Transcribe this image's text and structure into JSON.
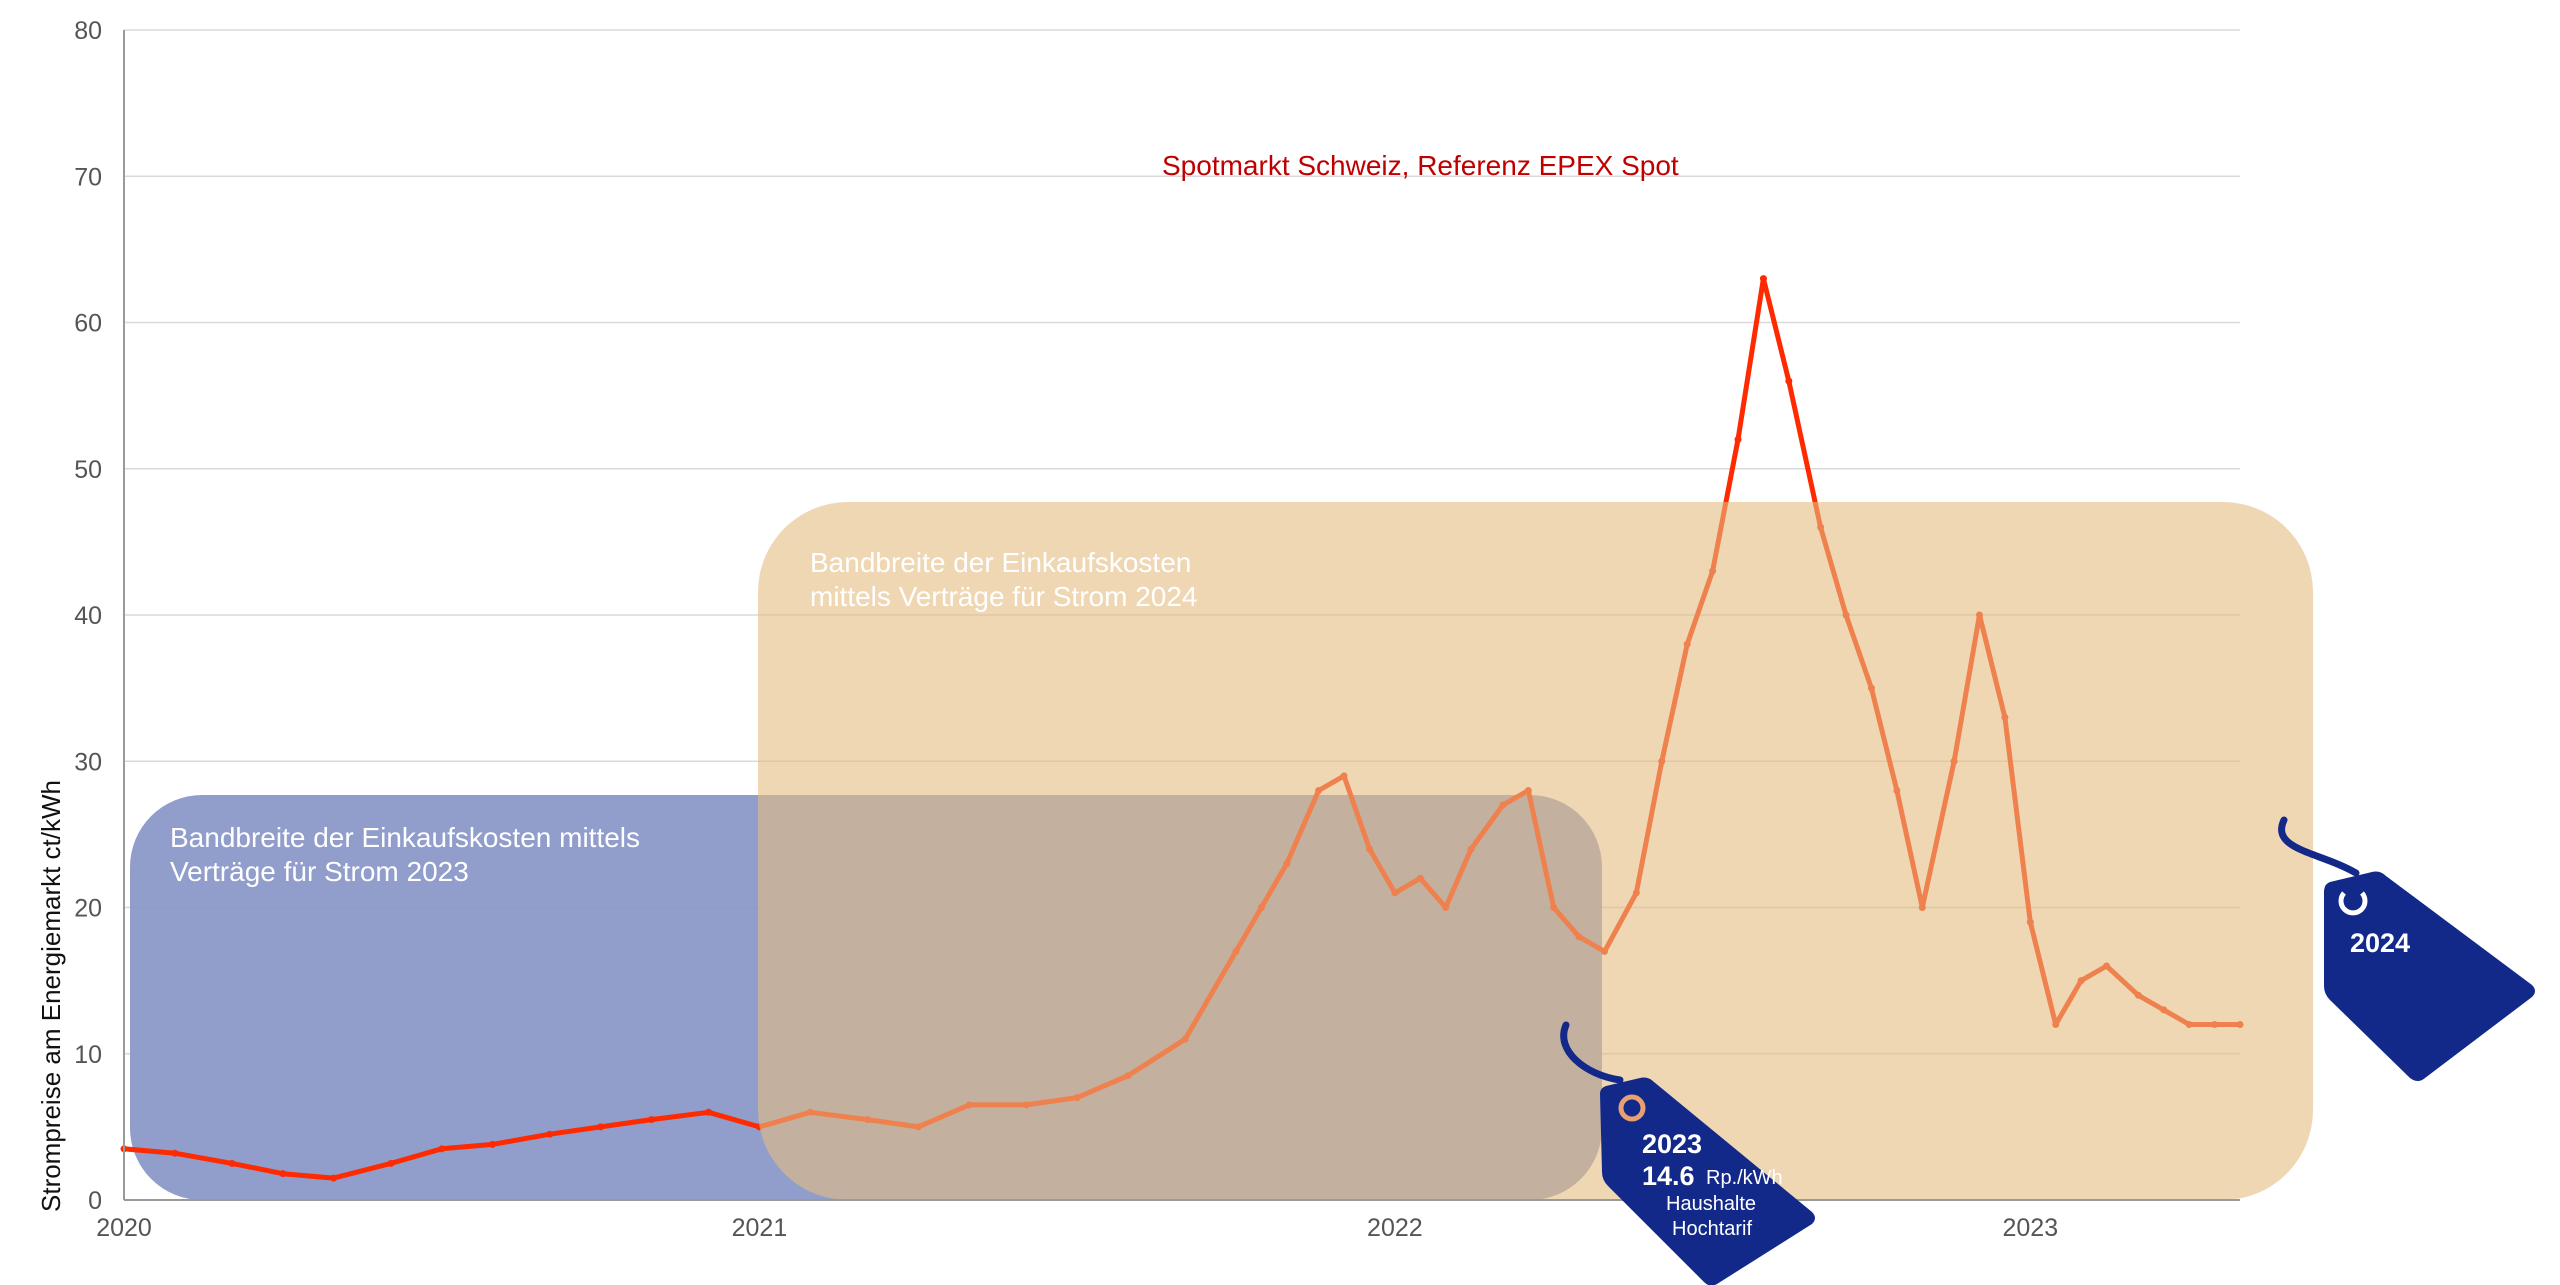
{
  "chart_data": {
    "type": "line",
    "title": "Spotmarkt Schweiz, Referenz EPEX Spot",
    "ylabel": "Strompreise am Energiemarkt ct/kWh",
    "xlabel": "",
    "ylim": [
      0,
      80
    ],
    "xlim": [
      2020.0,
      2023.33
    ],
    "y_ticks": [
      "0",
      "10",
      "20",
      "30",
      "40",
      "50",
      "60",
      "70",
      "80"
    ],
    "x_ticks": [
      "2020",
      "2021",
      "2022",
      "2023"
    ],
    "grid": true,
    "series": [
      {
        "color": "#ff2a00",
        "x": [
          2020.0,
          2020.08,
          2020.17,
          2020.25,
          2020.33,
          2020.42,
          2020.5,
          2020.58,
          2020.67,
          2020.75,
          2020.83,
          2020.92,
          2021.0,
          2021.08,
          2021.17,
          2021.25,
          2021.33,
          2021.42,
          2021.5,
          2021.58,
          2021.67,
          2021.75,
          2021.79,
          2021.83,
          2021.88,
          2021.92,
          2021.96,
          2022.0,
          2022.04,
          2022.08,
          2022.12,
          2022.17,
          2022.21,
          2022.25,
          2022.29,
          2022.33,
          2022.38,
          2022.42,
          2022.46,
          2022.5,
          2022.54,
          2022.58,
          2022.62,
          2022.67,
          2022.71,
          2022.75,
          2022.79,
          2022.83,
          2022.88,
          2022.92,
          2022.96,
          2023.0,
          2023.04,
          2023.08,
          2023.12,
          2023.17,
          2023.21,
          2023.25,
          2023.29,
          2023.33
        ],
        "values": [
          3.5,
          3.2,
          2.5,
          1.8,
          1.5,
          2.5,
          3.5,
          3.8,
          4.5,
          5,
          5.5,
          6,
          5,
          6,
          5.5,
          5,
          6.5,
          6.5,
          7,
          8.5,
          11,
          17,
          20,
          23,
          28,
          29,
          24,
          21,
          22,
          20,
          24,
          27,
          28,
          20,
          18,
          17,
          21,
          30,
          38,
          43,
          52,
          63,
          56,
          46,
          40,
          35,
          28,
          20,
          30,
          40,
          33,
          19,
          12,
          15,
          16,
          14,
          13,
          12,
          12,
          12
        ]
      }
    ],
    "annotations": [
      "Bandbreite der Einkaufskosten mittels Verträge für Strom 2023",
      "Bandbreite der Einkaufskosten mittels Verträge für Strom 2024"
    ]
  },
  "bands": {
    "band_2023": {
      "line1": "Bandbreite der Einkaufskosten mittels",
      "line2": "Verträge für Strom 2023",
      "color": "#8b98c8"
    },
    "band_2024": {
      "line1": "Bandbreite der Einkaufskosten",
      "line2": "mittels Verträge für Strom 2024",
      "color": "#e5bd82"
    }
  },
  "tags": {
    "tag_2023": {
      "year": "2023",
      "value": "14.6",
      "unit": "Rp./kWh",
      "line1": "Haushalte",
      "line2": "Hochtarif",
      "color": "#12298a"
    },
    "tag_2024": {
      "year": "2024",
      "color": "#12298a"
    }
  }
}
